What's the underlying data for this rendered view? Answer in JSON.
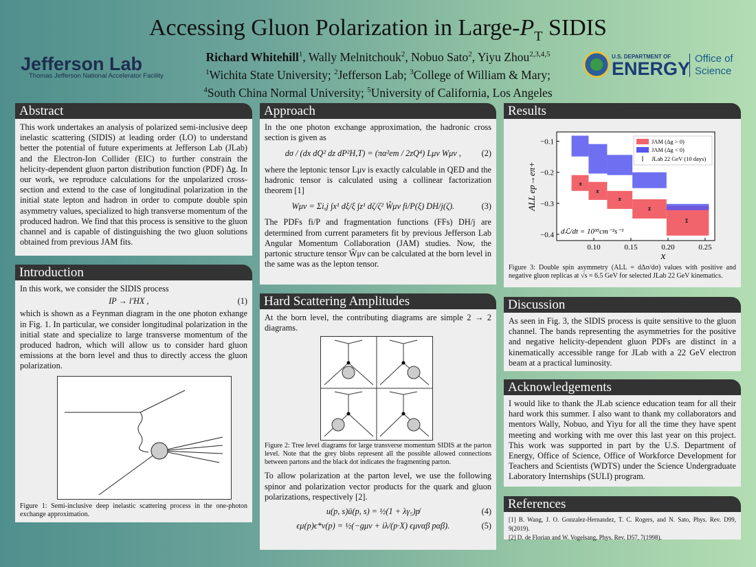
{
  "header": {
    "title_parts": [
      "Accessing Gluon Polarization in Large-",
      "P",
      "T",
      " SIDIS"
    ],
    "authors": [
      {
        "text": "Richard Whitehill",
        "sup": "1"
      },
      {
        "text": ", Wally Melnitchouk",
        "sup": "2"
      },
      {
        "text": ", Nobuo Sato",
        "sup": "2"
      },
      {
        "text": ", Yiyu Zhou",
        "sup": "2,3,4,5"
      }
    ],
    "affiliations_line1": [
      {
        "sup": "1",
        "text": "Wichita State University; "
      },
      {
        "sup": "2",
        "text": "Jefferson Lab; "
      },
      {
        "sup": "3",
        "text": "College of William & Mary;"
      }
    ],
    "affiliations_line2": [
      {
        "sup": "4",
        "text": "South China Normal University; "
      },
      {
        "sup": "5",
        "text": "University of California, Los Angeles"
      }
    ],
    "jlab_logo": {
      "name": "Jefferson Lab",
      "subtitle": "Thomas Jefferson National Accelerator Facility"
    },
    "doe_logo": {
      "top": "U.S. DEPARTMENT OF",
      "main": "ENERGY",
      "office1": "Office of",
      "office2": "Science"
    }
  },
  "abstract": {
    "title": "Abstract",
    "text": "This work undertakes an analysis of polarized semi-inclusive deep inelastic scattering (SIDIS) at leading order (LO) to understand better the potential of future experiments at Jefferson Lab (JLab) and the Electron-Ion Collider (EIC) to further constrain the helicity-dependent gluon parton distribution function (PDF) Δg. In our work, we reproduce calculations for the unpolarized cross-section and extend to the case of longitudinal polarization in the initial state lepton and hadron in order to compute double spin asymmetry values, specialized to high transverse momentum of the produced hadron. We find that this process is sensitive to the gluon channel and is capable of distinguishing the two gluon solutions obtained from previous JAM fits."
  },
  "introduction": {
    "title": "Introduction",
    "p1": "In this work, we consider the SIDIS process",
    "eq1": {
      "text": "IP → l′HX ,",
      "number": "(1)"
    },
    "p2": "which is shown as a Feynman diagram in the one photon exhange in Fig. 1. In particular, we consider longitudinal polarization in the initial state and specialize to large transverse momentum of the produced hadron, which will allow us to consider hard gluon emissions at the born level and thus to directly access the gluon polarization.",
    "caption": "Figure 1: Semi-inclusive deep inelastic scattering process in the one-photon exchange approximation."
  },
  "approach": {
    "title": "Approach",
    "p1": "In the one photon exchange approximation, the hadronic cross section is given as",
    "eq2": {
      "text": "dσ / (dx dQ² dz dP²H,T) = (πα²em / 2zQ⁴) Lμν Wμν ,",
      "number": "(2)"
    },
    "p2": "where the leptonic tensor Lμν is exactly calculable in QED and the hadronic tensor is calculated using a collinear factorization theorem [1]",
    "eq3": {
      "text": "Wμν = Σi,j ∫x¹ dξ/ξ ∫z¹ dζ/ζ² Ŵμν fi/P(ξ) DH/j(ζ).",
      "number": "(3)"
    },
    "p3": "The PDFs fi/P and fragmentation functions (FFs) DH/j are determined from current parameters fit by previous Jefferson Lab Angular Momentum Collaboration (JAM) studies. Now, the partonic structure tensor Ŵμν can be calculated at the born level in the same was as the lepton tensor."
  },
  "hard_scattering": {
    "title": "Hard Scattering Amplitudes",
    "p1": "At the born level, the contributing diagrams are simple 2 → 2 diagrams.",
    "caption": "Figure 2: Tree level diagrams for large transverse momentum SIDIS at the parton level. Note that the grey blobs represent all the possible allowed connections between partons and the black dot indicates the fragmenting parton.",
    "p2": "To allow polarization at the parton level, we use the following spinor and polarization vector products for the quark and gluon polarizations, respectively [2].",
    "eq4": {
      "text": "u(p, s)ū(p, s) = ½(1 + λγ₅)p̸",
      "number": "(4)"
    },
    "eq5": {
      "text": "ϵμ(p)ϵ*ν(p) = ½(−gμν + iλ/(p·X) ϵμναβ pαβ).",
      "number": "(5)"
    }
  },
  "results": {
    "title": "Results",
    "figure": {
      "ylabel": "ALL ep→eπ+",
      "xlabel": "x",
      "annotation": "dℒ/dt = 10³⁵cm⁻²s⁻¹",
      "xlim": [
        0.05,
        0.263
      ],
      "ylim": [
        -0.42,
        -0.07
      ],
      "xticks": [
        {
          "value": 0.1,
          "label": "0.10"
        },
        {
          "value": 0.15,
          "label": "0.15"
        },
        {
          "value": 0.2,
          "label": "0.20"
        },
        {
          "value": 0.25,
          "label": "0.25"
        }
      ],
      "yticks": [
        {
          "value": -0.1,
          "label": "−0.1"
        },
        {
          "value": -0.2,
          "label": "−0.2"
        },
        {
          "value": -0.3,
          "label": "−0.3"
        },
        {
          "value": -0.4,
          "label": "−0.4"
        }
      ],
      "bins": [
        0.07,
        0.093,
        0.118,
        0.152,
        0.198,
        0.255
      ],
      "series": [
        {
          "name": "JAM (Δg > 0)",
          "color": "#f2646b",
          "low": [
            -0.26,
            -0.289,
            -0.318,
            -0.349,
            -0.404
          ],
          "high": [
            -0.209,
            -0.231,
            -0.26,
            -0.287,
            -0.309
          ]
        },
        {
          "name": "JAM (Δg < 0)",
          "color": "#5656ee",
          "low": [
            -0.149,
            -0.204,
            -0.209,
            -0.251,
            -0.322
          ],
          "high": [
            -0.082,
            -0.109,
            -0.144,
            -0.2,
            -0.302
          ]
        }
      ],
      "points": {
        "name": "JLab 22 GeV (10 days)",
        "color": "#222",
        "x": [
          0.082,
          0.105,
          0.135,
          0.175,
          0.225
        ],
        "values": [
          -0.238,
          -0.262,
          -0.287,
          -0.318,
          -0.356
        ],
        "errors": [
          0.003,
          0.003,
          0.003,
          0.004,
          0.005
        ]
      }
    },
    "caption": "Figure 3: Double spin asymmetry (ALL = dΔσ/dσ) values with positive and negative gluon replicas at √s = 6.5 GeV for selected JLab 22 GeV kinematics."
  },
  "discussion": {
    "title": "Discussion",
    "text": "As seen in Fig. 3, the SIDIS process is quite sensitive to the gluon channel. The bands representing the asymmetries for the positive and negative helicity-dependent gluon PDFs are distinct in a kinematically accessible range for JLab with a 22 GeV electron beam at a practical luminosity."
  },
  "acknowledgements": {
    "title": "Acknowledgements",
    "text": "I would like to thank the JLab science education team for all their hard work this summer. I also want to thank my collaborators and mentors Wally, Nobuo, and Yiyu for all the time they have spent meeting and working with me over this last year on this project. This work was supported in part by the U.S. Department of Energy, Office of Science, Office of Workforce Development for Teachers and Scientists (WDTS) under the Science Undergraduate Laboratory Internships (SULI) program."
  },
  "references": {
    "title": "References",
    "items": [
      "[1] B. Wang, J. O. Gonzalez-Hernandez, T. C. Rogers, and N. Sato, Phys. Rev. D99, 9(2019).",
      "[2] D. de Florian and W. Vogelsang, Phys. Rev. D57, 7(1998)."
    ]
  }
}
